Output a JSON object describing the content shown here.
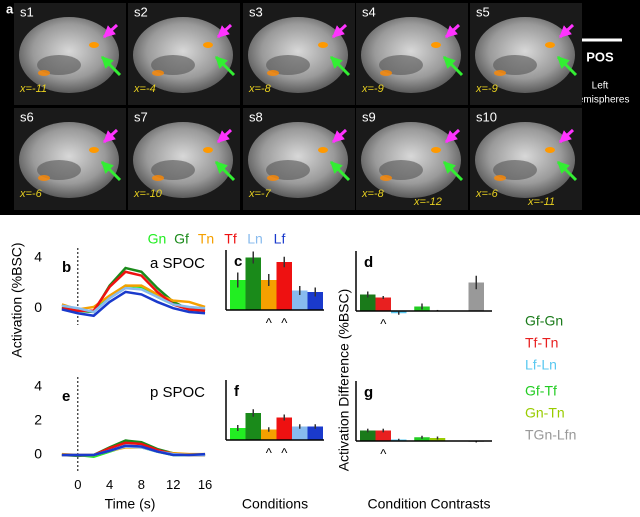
{
  "panel_a": {
    "label": "a",
    "slices": [
      {
        "label": "s1",
        "coords": [
          "x=-11"
        ]
      },
      {
        "label": "s2",
        "coords": [
          "x=-4"
        ]
      },
      {
        "label": "s3",
        "coords": [
          "x=-8"
        ]
      },
      {
        "label": "s4",
        "coords": [
          "x=-9"
        ]
      },
      {
        "label": "s5",
        "coords": [
          "x=-9"
        ]
      },
      {
        "label": "s6",
        "coords": [
          "x=-6"
        ]
      },
      {
        "label": "s7",
        "coords": [
          "x=-10"
        ]
      },
      {
        "label": "s8",
        "coords": [
          "x=-7"
        ]
      },
      {
        "label": "s9",
        "coords": [
          "x=-8",
          "x=-12"
        ]
      },
      {
        "label": "s10",
        "coords": [
          "x=-6",
          "x=-11"
        ]
      }
    ],
    "scale_label": "POS",
    "hemisphere_label": [
      "Left",
      "Hemispheres"
    ]
  },
  "chart_data": [
    {
      "type": "line",
      "label": "b",
      "title": "a SPOC",
      "ylabel": "Activation (%BSC)",
      "x": [
        -2,
        0,
        2,
        4,
        6,
        8,
        10,
        12,
        14,
        16
      ],
      "xlim": [
        -4,
        17
      ],
      "ylim": [
        -0.7,
        4
      ],
      "yticks": [
        0,
        4
      ],
      "vline": 0,
      "series": [
        {
          "name": "Gn",
          "color": "#22ee22",
          "values": [
            0.1,
            -0.2,
            -0.2,
            0.9,
            1.8,
            1.7,
            0.9,
            0.3,
            0,
            -0.1
          ]
        },
        {
          "name": "Gf",
          "color": "#1a8a1a",
          "values": [
            0,
            -0.2,
            -0.3,
            1.8,
            3.2,
            2.9,
            1.6,
            0.5,
            -0.1,
            -0.2
          ]
        },
        {
          "name": "Tn",
          "color": "#f5a000",
          "values": [
            0.3,
            -0.1,
            0.1,
            1.0,
            1.8,
            1.8,
            1.1,
            0.6,
            0.5,
            0.1
          ]
        },
        {
          "name": "Tf",
          "color": "#ee1111",
          "values": [
            0,
            -0.2,
            -0.2,
            1.7,
            2.9,
            2.6,
            1.3,
            0.3,
            -0.1,
            -0.2
          ]
        },
        {
          "name": "Ln",
          "color": "#88bbee",
          "values": [
            0.2,
            0,
            -0.3,
            0.8,
            1.6,
            1.5,
            0.9,
            0.3,
            0.1,
            0
          ]
        },
        {
          "name": "Lf",
          "color": "#1a3acc",
          "values": [
            -0.1,
            -0.4,
            -0.6,
            0.5,
            1.3,
            1.1,
            0.5,
            0,
            -0.3,
            -0.4
          ]
        }
      ]
    },
    {
      "type": "line",
      "label": "e",
      "title": "p SPOC",
      "xlabel": "Time (s)",
      "x": [
        -2,
        0,
        2,
        4,
        6,
        8,
        10,
        12,
        14,
        16
      ],
      "xlim": [
        -4,
        17
      ],
      "ylim": [
        -0.5,
        4
      ],
      "yticks": [
        0,
        2,
        4
      ],
      "xticks": [
        0,
        4,
        8,
        12,
        16
      ],
      "vline": 0,
      "series": [
        {
          "color": "#22ee22",
          "values": [
            0,
            0,
            -0.1,
            0.2,
            0.5,
            0.45,
            0.2,
            0,
            0,
            0
          ]
        },
        {
          "color": "#1a8a1a",
          "values": [
            0,
            -0.05,
            0,
            0.45,
            0.85,
            0.75,
            0.35,
            0.1,
            0,
            0
          ]
        },
        {
          "color": "#f5a000",
          "values": [
            0.05,
            0,
            0,
            0.25,
            0.45,
            0.45,
            0.25,
            0.1,
            0.05,
            0.05
          ]
        },
        {
          "color": "#ee1111",
          "values": [
            0,
            0,
            0,
            0.4,
            0.72,
            0.65,
            0.3,
            0.05,
            0,
            0
          ]
        },
        {
          "color": "#88bbee",
          "values": [
            0,
            0,
            0,
            0.25,
            0.5,
            0.45,
            0.2,
            0.05,
            0,
            0
          ]
        },
        {
          "color": "#1a3acc",
          "values": [
            0,
            0,
            0,
            0.25,
            0.55,
            0.5,
            0.2,
            0,
            0,
            0.05
          ]
        }
      ]
    },
    {
      "type": "bar",
      "label": "c",
      "ylim": [
        0,
        4
      ],
      "categories": [
        null,
        null,
        null,
        null,
        null,
        null
      ],
      "colors": [
        "#22ee22",
        "#1a8a1a",
        "#f5a000",
        "#ee1111",
        "#88bbee",
        "#1a3acc"
      ],
      "values": [
        2.0,
        3.5,
        2.0,
        3.2,
        1.3,
        1.2
      ],
      "errors": [
        0.5,
        0.4,
        0.4,
        0.35,
        0.3,
        0.3
      ],
      "markers": [
        null,
        null,
        "^",
        "^",
        null,
        null
      ]
    },
    {
      "type": "bar",
      "label": "f",
      "xlabel": "Conditions",
      "ylim": [
        0,
        4
      ],
      "categories": [
        null,
        null,
        null,
        null,
        null,
        null
      ],
      "colors": [
        "#22ee22",
        "#1a8a1a",
        "#f5a000",
        "#ee1111",
        "#88bbee",
        "#1a3acc"
      ],
      "values": [
        0.8,
        1.8,
        0.7,
        1.5,
        0.9,
        0.9
      ],
      "errors": [
        0.2,
        0.25,
        0.15,
        0.2,
        0.15,
        0.15
      ],
      "markers": [
        null,
        null,
        "^",
        "^",
        null,
        null
      ]
    },
    {
      "type": "bar",
      "label": "d",
      "ylabel": "Activation Difference (%BSC)",
      "ylim": [
        0,
        4
      ],
      "categories": [
        "Gf-Gn",
        "Tf-Tn",
        "Lf-Ln",
        "Gf-Tf",
        "Gn-Tn",
        "TGn-Lfn"
      ],
      "colors": [
        "#1a7a1a",
        "#e82020",
        "#5ac8f0",
        "#22cc22",
        "#99cc00",
        "#999999"
      ],
      "values": [
        1.1,
        0.9,
        -0.15,
        0.3,
        0.02,
        1.9
      ],
      "errors": [
        0.2,
        0.1,
        0.1,
        0.2,
        0.05,
        0.45
      ],
      "markers": [
        null,
        "^",
        null,
        null,
        null,
        null
      ]
    },
    {
      "type": "bar",
      "label": "g",
      "xlabel": "Condition Contrasts",
      "ylim": [
        0,
        4
      ],
      "categories": [
        null,
        null,
        null,
        null,
        null,
        null
      ],
      "colors": [
        "#1a7a1a",
        "#e82020",
        "#5ac8f0",
        "#22cc22",
        "#99cc00",
        "#999999"
      ],
      "values": [
        0.7,
        0.7,
        0.1,
        0.25,
        0.2,
        -0.05
      ],
      "errors": [
        0.12,
        0.12,
        0.05,
        0.1,
        0.1,
        0.05
      ],
      "markers": [
        null,
        "^",
        null,
        null,
        null,
        null
      ]
    }
  ]
}
